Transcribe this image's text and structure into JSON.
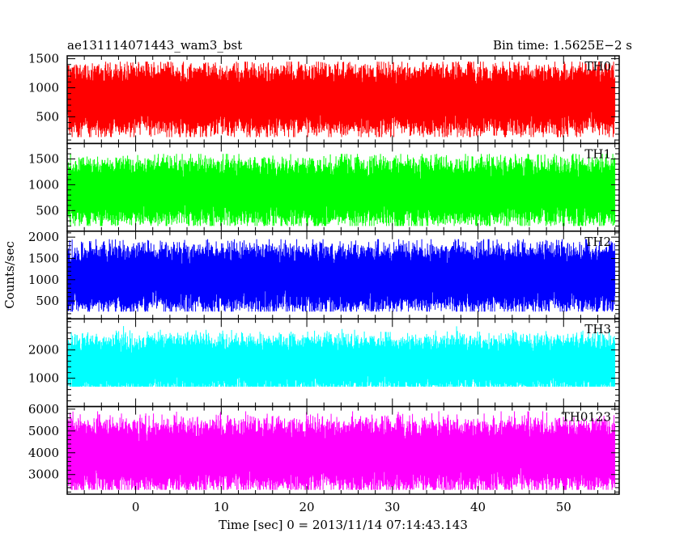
{
  "header": {
    "title": "ae131114071443_wam3_bst",
    "bin_time": "Bin time: 1.5625E−2 s"
  },
  "axes": {
    "ylabel": "Counts/sec",
    "xlabel": "Time [sec] 0 = 2013/11/14 07:14:43.143"
  },
  "chart_data": {
    "type": "line",
    "title": "ae131114071443_wam3_bst",
    "xlabel": "Time [sec] 0 = 2013/11/14 07:14:43.143",
    "ylabel": "Counts/sec",
    "xlim": [
      -8,
      56.5
    ],
    "x_data_range": [
      -7.9,
      56.0
    ],
    "x_ticks": [
      0,
      10,
      20,
      30,
      40,
      50
    ],
    "grid": false,
    "panels": [
      {
        "label": "TH0",
        "color": "#ff0000",
        "ylim": [
          40,
          1550
        ],
        "y_ticks": [
          500,
          1000,
          1500
        ],
        "typical_range": [
          150,
          1450
        ],
        "mean": 800
      },
      {
        "label": "TH1",
        "color": "#00ff00",
        "ylim": [
          100,
          1800
        ],
        "y_ticks": [
          500,
          1000,
          1500
        ],
        "typical_range": [
          200,
          1600
        ],
        "mean": 870
      },
      {
        "label": "TH2",
        "color": "#0000ff",
        "ylim": [
          80,
          2140
        ],
        "y_ticks": [
          500,
          1000,
          1500,
          2000
        ],
        "typical_range": [
          250,
          1950
        ],
        "mean": 1050
      },
      {
        "label": "TH3",
        "color": "#00ffff",
        "ylim": [
          0,
          3100
        ],
        "y_ticks": [
          1000,
          2000
        ],
        "typical_range": [
          700,
          2900
        ],
        "mean": 1500
      },
      {
        "label": "TH0123",
        "color": "#ff00ff",
        "ylim": [
          2100,
          6120
        ],
        "y_ticks": [
          3000,
          4000,
          5000,
          6000
        ],
        "typical_range": [
          2300,
          5900
        ],
        "mean": 3900
      }
    ]
  }
}
